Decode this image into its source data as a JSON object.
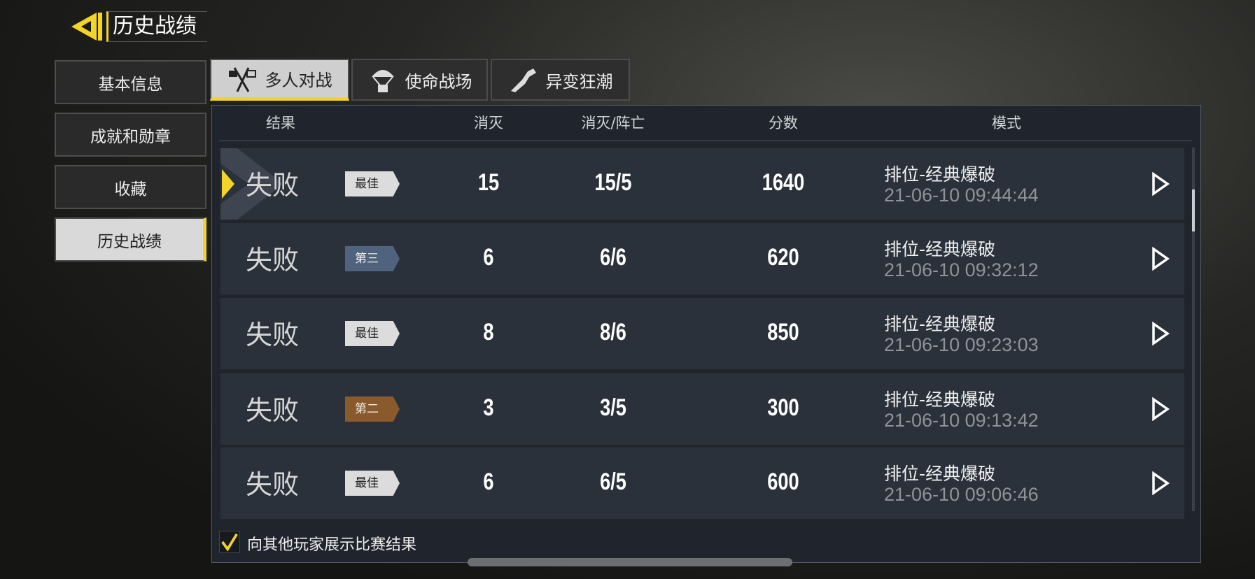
{
  "header": {
    "title": "历史战绩"
  },
  "sidebar": {
    "items": [
      {
        "label": "基本信息"
      },
      {
        "label": "成就和勋章"
      },
      {
        "label": "收藏"
      },
      {
        "label": "历史战绩"
      }
    ]
  },
  "tabs": [
    {
      "label": "多人对战",
      "icon": "crossed-flags-icon"
    },
    {
      "label": "使命战场",
      "icon": "parachute-icon"
    },
    {
      "label": "异变狂潮",
      "icon": "mutant-arm-icon"
    }
  ],
  "table": {
    "columns": [
      "结果",
      "消灭",
      "消灭/阵亡",
      "分数",
      "模式"
    ],
    "rows": [
      {
        "result": "失败",
        "badge": "最佳",
        "badge_color": "#dcdcdc",
        "kills": "15",
        "kd": "15/5",
        "score": "1640",
        "mode": "排位-经典爆破",
        "time": "21-06-10 09:44:44"
      },
      {
        "result": "失败",
        "badge": "第三",
        "badge_color": "#4f637e",
        "kills": "6",
        "kd": "6/6",
        "score": "620",
        "mode": "排位-经典爆破",
        "time": "21-06-10 09:32:12"
      },
      {
        "result": "失败",
        "badge": "最佳",
        "badge_color": "#dcdcdc",
        "kills": "8",
        "kd": "8/6",
        "score": "850",
        "mode": "排位-经典爆破",
        "time": "21-06-10 09:23:03"
      },
      {
        "result": "失败",
        "badge": "第二",
        "badge_color": "#8a5a2c",
        "kills": "3",
        "kd": "3/5",
        "score": "300",
        "mode": "排位-经典爆破",
        "time": "21-06-10 09:13:42"
      },
      {
        "result": "失败",
        "badge": "最佳",
        "badge_color": "#dcdcdc",
        "kills": "6",
        "kd": "6/5",
        "score": "600",
        "mode": "排位-经典爆破",
        "time": "21-06-10 09:06:46"
      }
    ]
  },
  "footer": {
    "show_results_label": "向其他玩家展示比赛结果",
    "show_results_checked": true
  },
  "colors": {
    "accent": "#f2d32a"
  }
}
